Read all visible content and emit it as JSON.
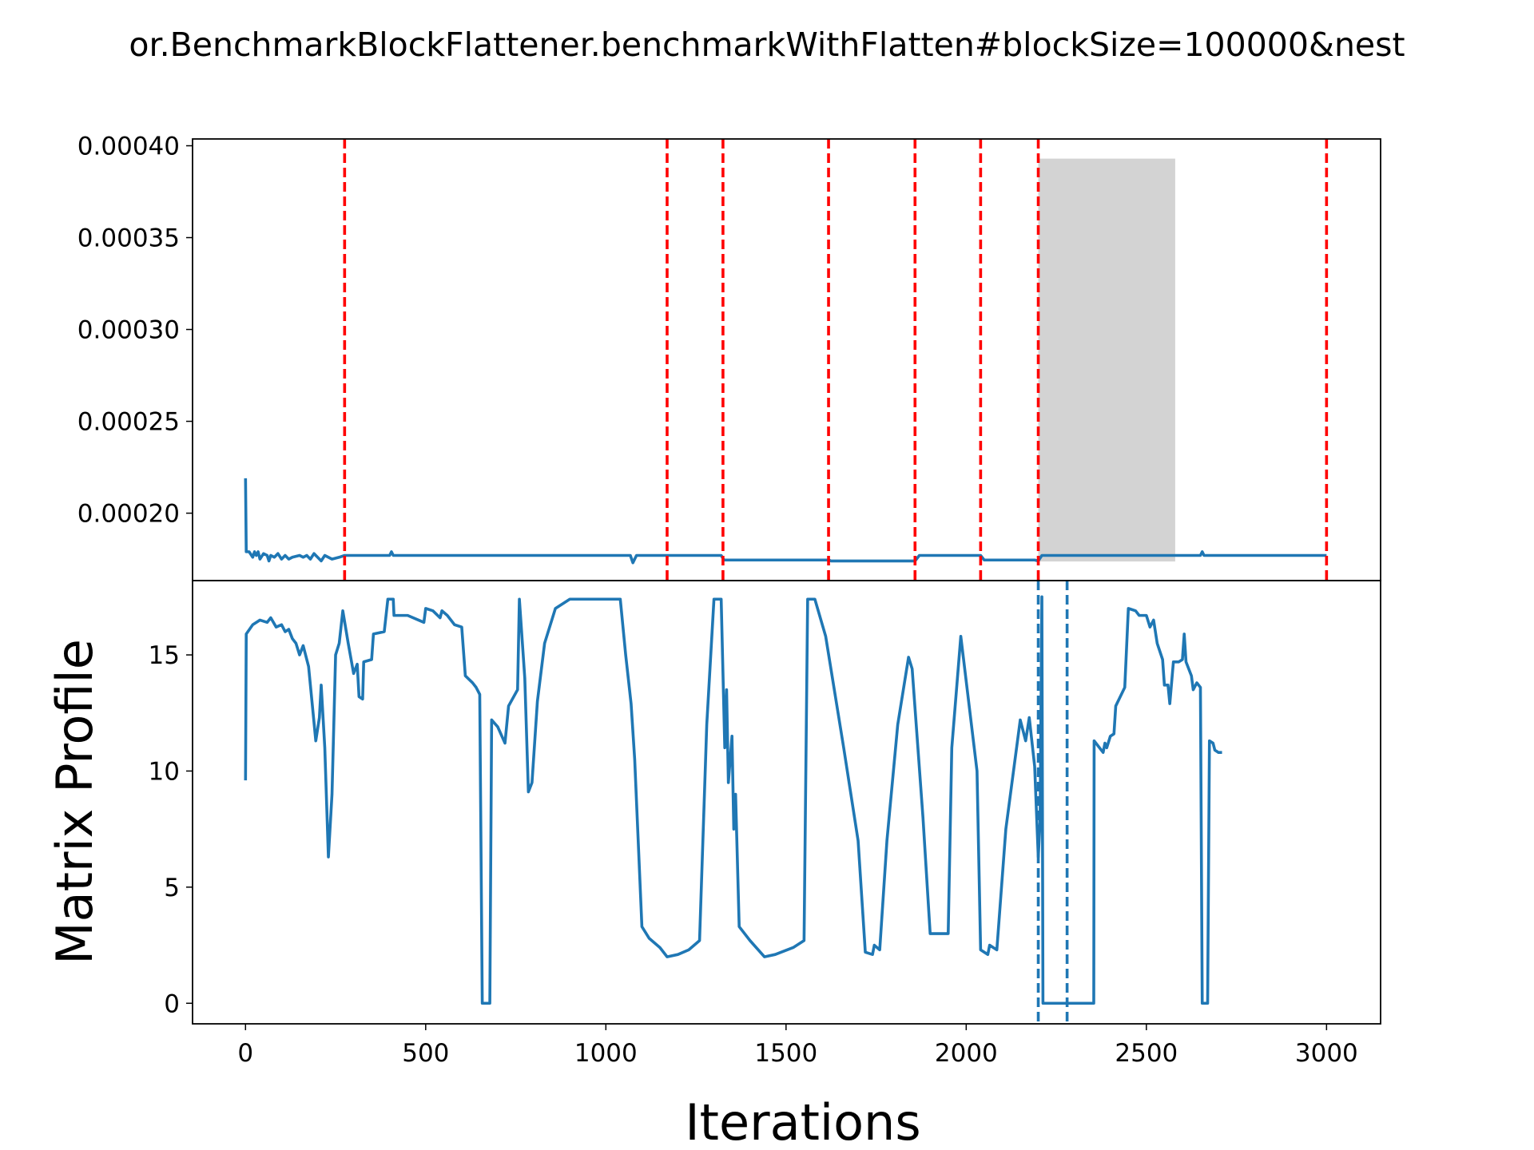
{
  "chart_data": [
    {
      "type": "line",
      "title": "or.BenchmarkBlockFlattener.benchmarkWithFlatten#blockSize=100000&nest",
      "x": [
        0,
        2,
        10,
        20,
        25,
        30,
        35,
        40,
        50,
        60,
        65,
        70,
        80,
        90,
        100,
        110,
        120,
        130,
        150,
        160,
        170,
        180,
        190,
        200,
        210,
        220,
        240,
        260,
        275,
        300,
        400,
        405,
        410,
        500,
        600,
        700,
        800,
        900,
        1000,
        1050,
        1068,
        1075,
        1085,
        1170,
        1320,
        1328,
        1400,
        1618,
        1625,
        1850,
        1858,
        1870,
        2000,
        2040,
        2050,
        2190,
        2200,
        2210,
        2500,
        2650,
        2655,
        2660,
        2800,
        3000
      ],
      "series": [
        {
          "color": "#1f77b4",
          "values": [
            0.000219,
            0.000179,
            0.000179,
            0.000176,
            0.000179,
            0.000177,
            0.000179,
            0.000175,
            0.000178,
            0.000177,
            0.000174,
            0.000177,
            0.000176,
            0.000178,
            0.000175,
            0.000177,
            0.000175,
            0.000176,
            0.000177,
            0.000176,
            0.000177,
            0.000175,
            0.000178,
            0.000176,
            0.000174,
            0.000177,
            0.000175,
            0.000176,
            0.000177,
            0.000177,
            0.000177,
            0.000179,
            0.000177,
            0.000177,
            0.000177,
            0.000177,
            0.000177,
            0.000177,
            0.000177,
            0.000177,
            0.000177,
            0.000173,
            0.000177,
            0.000177,
            0.000177,
            0.0001745,
            0.0001745,
            0.0001745,
            0.000174,
            0.000174,
            0.000174,
            0.000177,
            0.000177,
            0.000177,
            0.0001745,
            0.0001745,
            0.000174,
            0.000177,
            0.000177,
            0.000177,
            0.000179,
            0.000177,
            0.000177,
            0.000177
          ]
        }
      ],
      "vlines": {
        "x": [
          275,
          1170,
          1325,
          1618,
          1858,
          2040,
          2200,
          3000
        ],
        "color": "#ff0000",
        "style": "dashed"
      },
      "shaded_region": {
        "xstart": 2200,
        "xend": 2580,
        "ymin": 0.0001737,
        "ymax": 0.000393,
        "color": "#d3d3d3"
      },
      "xlim": [
        -147,
        3150
      ],
      "ylim": [
        0.0001633,
        0.0004037
      ],
      "yticks": [
        {
          "value": 0.0002,
          "label": "0.00020"
        },
        {
          "value": 0.00025,
          "label": "0.00025"
        },
        {
          "value": 0.0003,
          "label": "0.00030"
        },
        {
          "value": 0.00035,
          "label": "0.00035"
        },
        {
          "value": 0.0004,
          "label": "0.00040"
        }
      ]
    },
    {
      "type": "line",
      "xlabel": "Iterations",
      "ylabel": "Matrix Profile",
      "x": [
        0,
        2,
        20,
        40,
        60,
        70,
        85,
        100,
        110,
        120,
        130,
        140,
        150,
        160,
        175,
        195,
        205,
        210,
        220,
        230,
        240,
        250,
        260,
        270,
        285,
        300,
        310,
        315,
        325,
        328,
        350,
        355,
        385,
        395,
        410,
        412,
        450,
        480,
        495,
        500,
        520,
        540,
        545,
        560,
        580,
        600,
        610,
        630,
        640,
        650,
        657,
        678,
        683,
        700,
        720,
        730,
        755,
        760,
        775,
        785,
        795,
        810,
        830,
        860,
        900,
        1040,
        1055,
        1070,
        1080,
        1100,
        1120,
        1150,
        1170,
        1200,
        1230,
        1260,
        1280,
        1300,
        1320,
        1330,
        1335,
        1340,
        1350,
        1355,
        1360,
        1370,
        1400,
        1440,
        1470,
        1520,
        1550,
        1560,
        1580,
        1610,
        1660,
        1700,
        1720,
        1740,
        1745,
        1760,
        1780,
        1810,
        1840,
        1850,
        1880,
        1900,
        1950,
        1960,
        1985,
        2030,
        2040,
        2060,
        2065,
        2085,
        2110,
        2150,
        2165,
        2175,
        2190,
        2200,
        2205,
        2210,
        2213,
        2354,
        2355,
        2370,
        2380,
        2385,
        2390,
        2400,
        2410,
        2415,
        2440,
        2450,
        2470,
        2480,
        2500,
        2510,
        2520,
        2530,
        2545,
        2550,
        2560,
        2565,
        2575,
        2590,
        2600,
        2605,
        2610,
        2625,
        2630,
        2640,
        2650,
        2655,
        2670,
        2675,
        2685,
        2690,
        2700,
        2710
      ],
      "series": [
        {
          "color": "#1f77b4",
          "values": [
            9.6,
            15.9,
            16.3,
            16.5,
            16.4,
            16.6,
            16.2,
            16.3,
            16.0,
            16.1,
            15.7,
            15.5,
            15.0,
            15.4,
            14.5,
            11.3,
            12.3,
            13.7,
            11.0,
            6.3,
            9.0,
            15.0,
            15.5,
            16.9,
            15.5,
            14.2,
            14.6,
            13.2,
            13.1,
            14.7,
            14.8,
            15.9,
            16.0,
            17.4,
            17.4,
            16.7,
            16.7,
            16.5,
            16.4,
            17.0,
            16.9,
            16.6,
            16.9,
            16.7,
            16.3,
            16.2,
            14.1,
            13.8,
            13.6,
            13.3,
            0,
            0,
            12.2,
            11.9,
            11.2,
            12.8,
            13.5,
            17.4,
            14.0,
            9.1,
            9.5,
            13.0,
            15.5,
            17.0,
            17.4,
            17.4,
            15.0,
            12.9,
            10.5,
            3.3,
            2.8,
            2.4,
            2.0,
            2.1,
            2.3,
            2.7,
            12.0,
            17.4,
            17.4,
            11.0,
            13.5,
            9.5,
            11.5,
            7.5,
            9.0,
            3.3,
            2.7,
            2.0,
            2.1,
            2.4,
            2.7,
            17.4,
            17.4,
            15.8,
            11.0,
            7.0,
            2.2,
            2.1,
            2.5,
            2.3,
            7.0,
            12.0,
            14.9,
            14.4,
            8.0,
            3.0,
            3.0,
            11.0,
            15.8,
            10.0,
            2.3,
            2.1,
            2.5,
            2.3,
            7.5,
            12.2,
            11.3,
            12.3,
            10.2,
            6.3,
            7.8,
            17.5,
            0,
            0,
            11.3,
            11.0,
            10.8,
            11.2,
            11.0,
            11.5,
            11.6,
            12.8,
            13.6,
            17.0,
            16.9,
            16.7,
            16.7,
            16.2,
            16.5,
            15.5,
            14.8,
            13.7,
            13.7,
            12.9,
            14.7,
            14.7,
            14.8,
            15.9,
            14.7,
            14.1,
            13.5,
            13.8,
            13.6,
            0,
            0,
            11.3,
            11.2,
            10.9,
            10.8,
            10.8
          ]
        }
      ],
      "vlines": {
        "x": [
          2200,
          2280
        ],
        "color": "#1f77b4",
        "style": "dashed"
      },
      "xlim": [
        -147,
        3150
      ],
      "ylim": [
        -0.885,
        18.2
      ],
      "xticks": [
        0,
        500,
        1000,
        1500,
        2000,
        2500,
        3000
      ],
      "yticks": [
        0,
        5,
        10,
        15
      ]
    }
  ]
}
